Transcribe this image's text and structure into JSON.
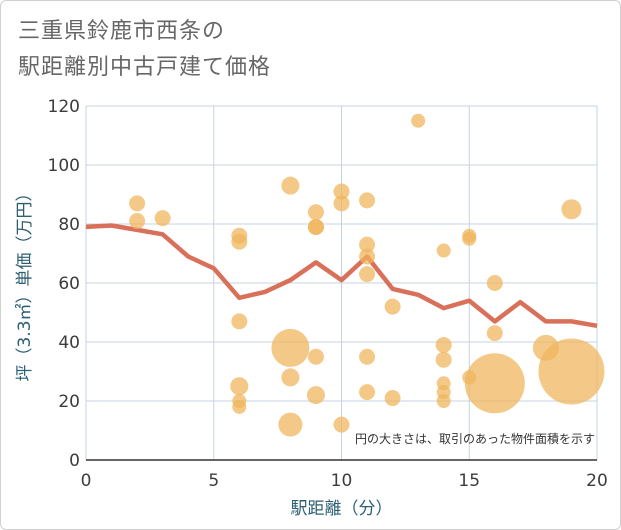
{
  "title_line1": "三重県鈴鹿市西条の",
  "title_line2": "駅距離別中古戸建て価格",
  "chart_data": {
    "type": "scatter",
    "title": "三重県鈴鹿市西条の駅距離別中古戸建て価格",
    "xlabel": "駅距離（分）",
    "ylabel": "坪（3.3㎡）単価（万円）",
    "xlim": [
      0,
      20
    ],
    "ylim": [
      0,
      120
    ],
    "xticks": [
      0,
      5,
      10,
      15,
      20
    ],
    "yticks": [
      0,
      20,
      40,
      60,
      80,
      100,
      120
    ],
    "grid": true,
    "annotation": "円の大きさは、取引のあった物件面積を示す",
    "colors": {
      "points": "#f0b45a",
      "line": "#d9705a",
      "grid": "#c5d3e0"
    },
    "points": [
      {
        "x": 2,
        "y": 87,
        "r": 8
      },
      {
        "x": 2,
        "y": 81,
        "r": 8
      },
      {
        "x": 3,
        "y": 82,
        "r": 8
      },
      {
        "x": 6,
        "y": 76,
        "r": 8
      },
      {
        "x": 6,
        "y": 74,
        "r": 8
      },
      {
        "x": 6,
        "y": 47,
        "r": 8
      },
      {
        "x": 6,
        "y": 25,
        "r": 9
      },
      {
        "x": 6,
        "y": 20,
        "r": 7
      },
      {
        "x": 6,
        "y": 18,
        "r": 7
      },
      {
        "x": 8,
        "y": 93,
        "r": 9
      },
      {
        "x": 8,
        "y": 38,
        "r": 19
      },
      {
        "x": 8,
        "y": 28,
        "r": 9
      },
      {
        "x": 8,
        "y": 12,
        "r": 12
      },
      {
        "x": 9,
        "y": 84,
        "r": 8
      },
      {
        "x": 9,
        "y": 79,
        "r": 8
      },
      {
        "x": 9,
        "y": 79,
        "r": 8
      },
      {
        "x": 9,
        "y": 35,
        "r": 8
      },
      {
        "x": 9,
        "y": 22,
        "r": 9
      },
      {
        "x": 10,
        "y": 91,
        "r": 8
      },
      {
        "x": 10,
        "y": 87,
        "r": 8
      },
      {
        "x": 10,
        "y": 12,
        "r": 8
      },
      {
        "x": 11,
        "y": 88,
        "r": 8
      },
      {
        "x": 11,
        "y": 73,
        "r": 8
      },
      {
        "x": 11,
        "y": 69,
        "r": 8
      },
      {
        "x": 11,
        "y": 63,
        "r": 8
      },
      {
        "x": 11,
        "y": 35,
        "r": 8
      },
      {
        "x": 11,
        "y": 23,
        "r": 8
      },
      {
        "x": 12,
        "y": 52,
        "r": 8
      },
      {
        "x": 12,
        "y": 21,
        "r": 8
      },
      {
        "x": 13,
        "y": 115,
        "r": 7
      },
      {
        "x": 14,
        "y": 71,
        "r": 7
      },
      {
        "x": 14,
        "y": 39,
        "r": 8
      },
      {
        "x": 14,
        "y": 34,
        "r": 8
      },
      {
        "x": 14,
        "y": 26,
        "r": 7
      },
      {
        "x": 14,
        "y": 23,
        "r": 7
      },
      {
        "x": 14,
        "y": 20,
        "r": 7
      },
      {
        "x": 15,
        "y": 76,
        "r": 7
      },
      {
        "x": 15,
        "y": 75,
        "r": 7
      },
      {
        "x": 15,
        "y": 28,
        "r": 7
      },
      {
        "x": 16,
        "y": 60,
        "r": 8
      },
      {
        "x": 16,
        "y": 43,
        "r": 8
      },
      {
        "x": 16,
        "y": 26,
        "r": 30
      },
      {
        "x": 18,
        "y": 38,
        "r": 13
      },
      {
        "x": 19,
        "y": 85,
        "r": 10
      },
      {
        "x": 19,
        "y": 30,
        "r": 33
      }
    ],
    "line": {
      "x": [
        0,
        1,
        2,
        3,
        4,
        5,
        6,
        7,
        8,
        9,
        10,
        11,
        12,
        13,
        14,
        15,
        16,
        17,
        18,
        19,
        20
      ],
      "y": [
        79,
        79.5,
        78,
        76.5,
        69,
        65,
        55,
        57,
        61,
        67,
        61,
        69,
        58,
        56,
        51.5,
        54,
        47,
        53.5,
        47,
        47,
        45.5
      ]
    }
  }
}
